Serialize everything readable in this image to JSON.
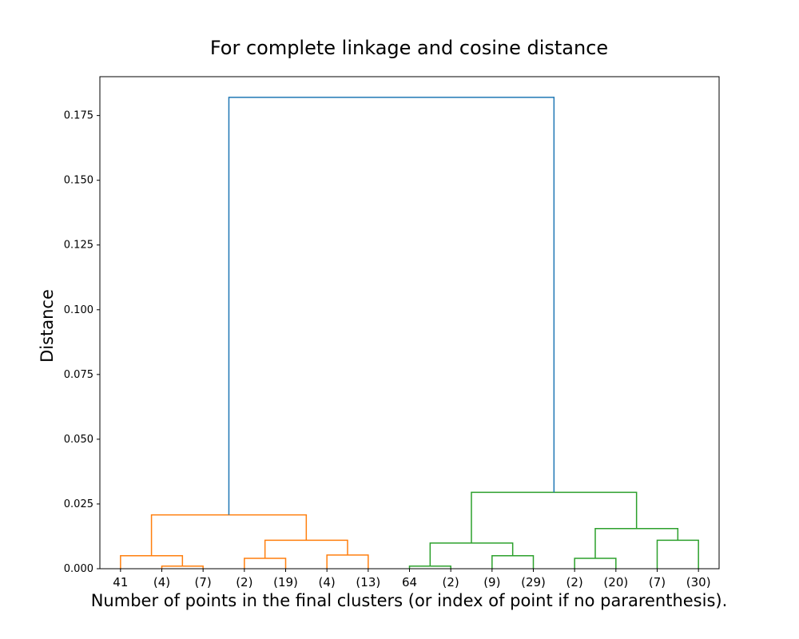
{
  "chart_data": {
    "type": "dendrogram",
    "title": "For complete linkage and cosine distance",
    "xlabel": "Number of points in the final clusters (or index of point if no pararenthesis).",
    "ylabel": "Distance",
    "ylim": [
      0,
      0.19
    ],
    "yticks": [
      0.0,
      0.025,
      0.05,
      0.075,
      0.1,
      0.125,
      0.15,
      0.175
    ],
    "ytick_labels": [
      "0.000",
      "0.025",
      "0.050",
      "0.075",
      "0.100",
      "0.125",
      "0.150",
      "0.175"
    ],
    "leaves": [
      "41",
      "(4)",
      "(7)",
      "(2)",
      "(19)",
      "(4)",
      "(13)",
      "64",
      "(2)",
      "(9)",
      "(29)",
      "(2)",
      "(20)",
      "(7)",
      "(30)"
    ],
    "colors": {
      "orange": "#ff7f0e",
      "green": "#2ca02c",
      "blue": "#1f77b4"
    },
    "links": [
      {
        "left": "leaf:1",
        "right": "leaf:2",
        "height": 0.001,
        "color": "orange"
      },
      {
        "left": "leaf:0",
        "right": "link:0",
        "height": 0.005,
        "color": "orange"
      },
      {
        "left": "leaf:3",
        "right": "leaf:4",
        "height": 0.004,
        "color": "orange"
      },
      {
        "left": "leaf:5",
        "right": "leaf:6",
        "height": 0.0053,
        "color": "orange"
      },
      {
        "left": "link:2",
        "right": "link:3",
        "height": 0.011,
        "color": "orange"
      },
      {
        "left": "link:1",
        "right": "link:4",
        "height": 0.0208,
        "color": "orange"
      },
      {
        "left": "leaf:7",
        "right": "leaf:8",
        "height": 0.001,
        "color": "green"
      },
      {
        "left": "leaf:9",
        "right": "leaf:10",
        "height": 0.005,
        "color": "green"
      },
      {
        "left": "link:6",
        "right": "link:7",
        "height": 0.0099,
        "color": "green"
      },
      {
        "left": "leaf:11",
        "right": "leaf:12",
        "height": 0.004,
        "color": "green"
      },
      {
        "left": "leaf:13",
        "right": "leaf:14",
        "height": 0.011,
        "color": "green"
      },
      {
        "left": "link:9",
        "right": "link:10",
        "height": 0.0155,
        "color": "green"
      },
      {
        "left": "link:8",
        "right": "link:11",
        "height": 0.0295,
        "color": "green"
      },
      {
        "left": "link:5",
        "right": "link:12",
        "height": 0.182,
        "color": "blue"
      }
    ]
  }
}
